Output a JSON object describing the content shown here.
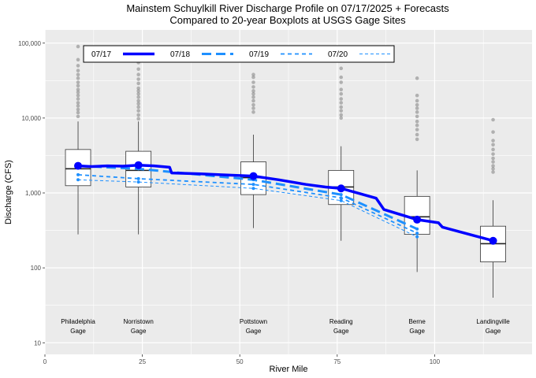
{
  "chart_data": {
    "type": "boxplot+line",
    "title_line1": "Mainstem Schuylkill River Discharge Profile on 07/17/2025 + Forecasts",
    "title_line2": "Compared to 20-year Boxplots at USGS Gage Sites",
    "xlabel": "River Mile",
    "ylabel": "Discharge (CFS)",
    "xlim": [
      0,
      125
    ],
    "ylim": [
      7,
      150000
    ],
    "yscale": "log",
    "x_ticks": [
      0,
      25,
      50,
      75,
      100
    ],
    "y_ticks": [
      10,
      100,
      1000,
      10000,
      100000
    ],
    "y_tick_labels": [
      "10",
      "100",
      "1,000",
      "10,000",
      "100,000"
    ],
    "grid": true,
    "legend_position": "top",
    "gages": [
      {
        "name": "Philadelphia",
        "line2": "Gage",
        "mile": 8.5,
        "whisker_low": 280,
        "q1": 1250,
        "median": 2100,
        "q3": 3800,
        "whisker_high": 9000,
        "outliers": [
          10500,
          11800,
          13000,
          14500,
          16000,
          18000,
          20000,
          22000,
          24000,
          27000,
          30000,
          34000,
          38000,
          43000,
          50000,
          60000,
          90000
        ]
      },
      {
        "name": "Norristown",
        "line2": "Gage",
        "mile": 24,
        "whisker_low": 280,
        "q1": 1200,
        "median": 2000,
        "q3": 3600,
        "whisker_high": 9000,
        "outliers": [
          9800,
          11000,
          12500,
          14000,
          15500,
          17000,
          19000,
          21000,
          23000,
          25000,
          29000,
          33000,
          38000,
          45000,
          55000,
          65000
        ]
      },
      {
        "name": "Pottstown",
        "line2": "Gage",
        "mile": 53.5,
        "whisker_low": 340,
        "q1": 950,
        "median": 1600,
        "q3": 2600,
        "whisker_high": 6000,
        "outliers": [
          12000,
          13500,
          15000,
          17000,
          19000,
          21000,
          23000,
          26000,
          30000,
          35000,
          38000
        ]
      },
      {
        "name": "Reading",
        "line2": "Gage",
        "mile": 76,
        "whisker_low": 230,
        "q1": 700,
        "median": 1200,
        "q3": 2000,
        "whisker_high": 4200,
        "outliers": [
          10000,
          11000,
          12500,
          14000,
          16000,
          18000,
          21000,
          24000,
          30000,
          35000,
          46000
        ]
      },
      {
        "name": "Berne",
        "line2": "Gage",
        "mile": 95.5,
        "whisker_low": 88,
        "q1": 280,
        "median": 480,
        "q3": 900,
        "whisker_high": 2000,
        "outliers": [
          5200,
          6000,
          7000,
          8000,
          9000,
          10500,
          12000,
          13500,
          15000,
          17000,
          20000,
          34000
        ]
      },
      {
        "name": "Landingville",
        "line2": "Gage",
        "mile": 115,
        "whisker_low": 40,
        "q1": 120,
        "median": 210,
        "q3": 360,
        "whisker_high": 800,
        "outliers": [
          1900,
          2100,
          2300,
          2600,
          2900,
          3300,
          3800,
          4400,
          5000,
          6500,
          9500
        ]
      }
    ],
    "series": [
      {
        "name": "07/17",
        "color": "#0000ff",
        "dash": "solid",
        "width": 3.5,
        "x": [
          8.5,
          12,
          16,
          20,
          24,
          28,
          32,
          32.5,
          40,
          45,
          53.5,
          60,
          67,
          72,
          76,
          85,
          87,
          92,
          95.5,
          101,
          102,
          110,
          115
        ],
        "y": [
          2300,
          2250,
          2300,
          2280,
          2350,
          2300,
          2200,
          1850,
          1800,
          1750,
          1680,
          1500,
          1300,
          1200,
          1150,
          850,
          600,
          500,
          440,
          400,
          350,
          270,
          230
        ],
        "markers_x": [
          8.5,
          24,
          53.5,
          76,
          95.5,
          115
        ],
        "markers_y": [
          2300,
          2350,
          1680,
          1150,
          440,
          230
        ]
      },
      {
        "name": "07/18",
        "color": "#1e90ff",
        "dash": "12,6",
        "width": 3,
        "x": [
          8.5,
          24,
          53.5,
          76,
          95.5
        ],
        "y": [
          2300,
          2100,
          1500,
          950,
          330
        ]
      },
      {
        "name": "07/19",
        "color": "#1e90ff",
        "dash": "5,4",
        "width": 1.8,
        "x": [
          8.5,
          24,
          53.5,
          76,
          95.5
        ],
        "y": [
          1750,
          1550,
          1300,
          860,
          290
        ]
      },
      {
        "name": "07/20",
        "color": "#1e90ff",
        "dash": "4,3",
        "width": 1,
        "x": [
          8.5,
          24,
          53.5,
          76,
          95.5
        ],
        "y": [
          1500,
          1400,
          1150,
          790,
          260
        ]
      }
    ]
  }
}
